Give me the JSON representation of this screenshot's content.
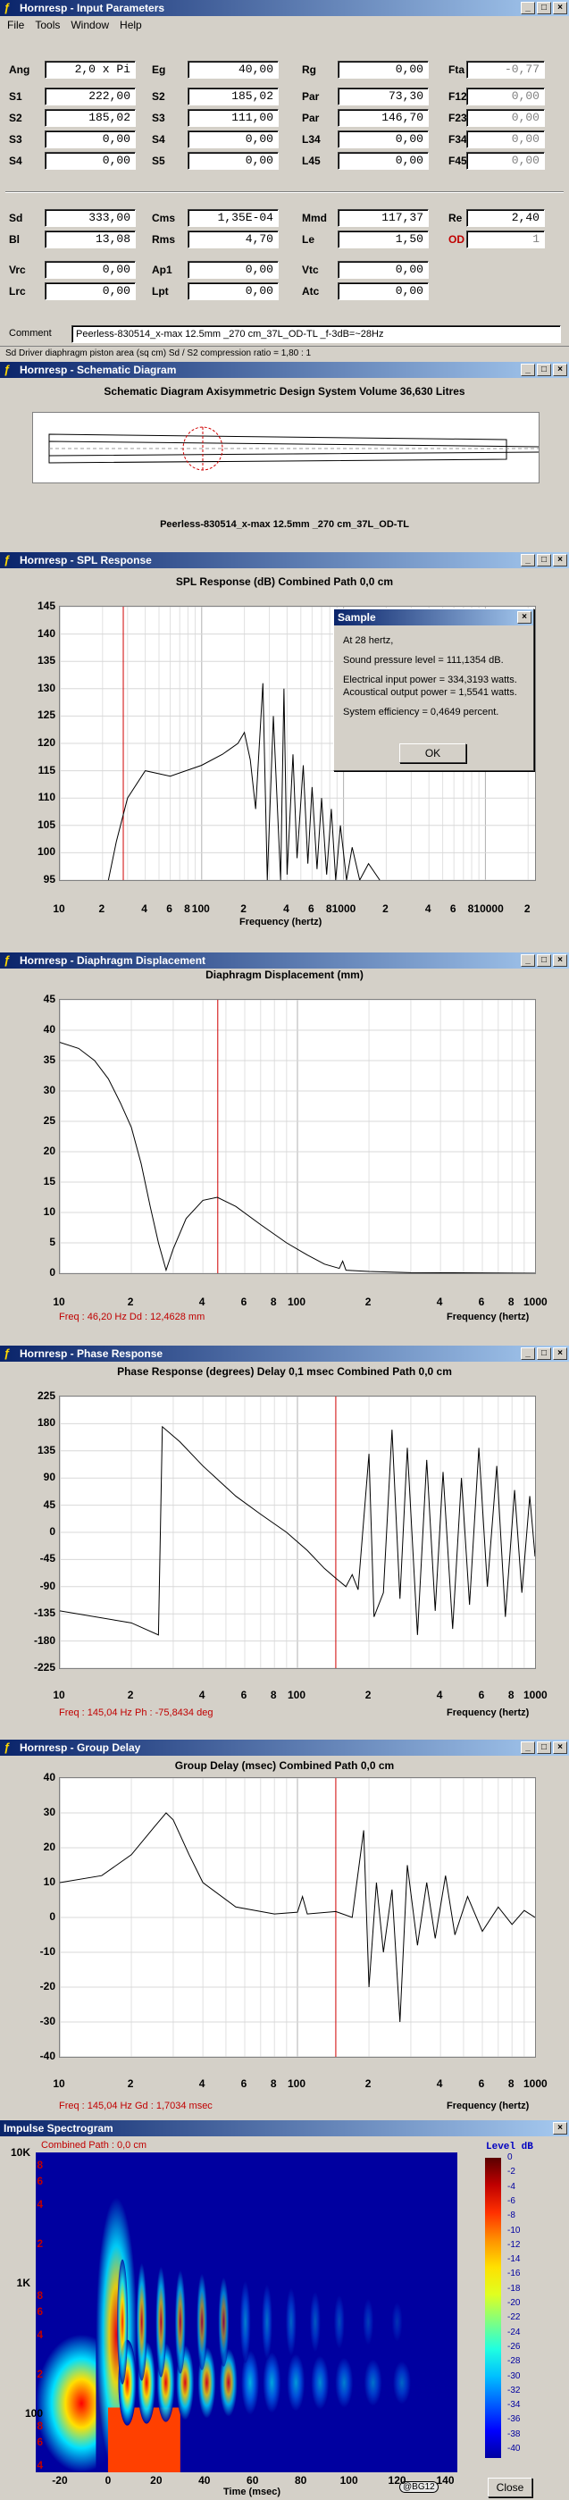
{
  "input": {
    "title": "Hornresp - Input Parameters",
    "menu": [
      "File",
      "Tools",
      "Window",
      "Help"
    ],
    "params": [
      {
        "label": "Ang",
        "value": "2,0 x Pi",
        "gray": false
      },
      {
        "label": "Eg",
        "value": "40,00",
        "gray": false
      },
      {
        "label": "Rg",
        "value": "0,00",
        "gray": false
      },
      {
        "label": "Fta",
        "value": "-0,77",
        "gray": true
      },
      {
        "label": "S1",
        "value": "222,00",
        "gray": false
      },
      {
        "label": "S2",
        "value": "185,02",
        "gray": false
      },
      {
        "label": "Par",
        "value": "73,30",
        "gray": false
      },
      {
        "label": "F12",
        "value": "0,00",
        "gray": true
      },
      {
        "label": "S2",
        "value": "185,02",
        "gray": false
      },
      {
        "label": "S3",
        "value": "111,00",
        "gray": false
      },
      {
        "label": "Par",
        "value": "146,70",
        "gray": false
      },
      {
        "label": "F23",
        "value": "0,00",
        "gray": true
      },
      {
        "label": "S3",
        "value": "0,00",
        "gray": false
      },
      {
        "label": "S4",
        "value": "0,00",
        "gray": false
      },
      {
        "label": "L34",
        "value": "0,00",
        "gray": false
      },
      {
        "label": "F34",
        "value": "0,00",
        "gray": true
      },
      {
        "label": "S4",
        "value": "0,00",
        "gray": false
      },
      {
        "label": "S5",
        "value": "0,00",
        "gray": false
      },
      {
        "label": "L45",
        "value": "0,00",
        "gray": false
      },
      {
        "label": "F45",
        "value": "0,00",
        "gray": true
      },
      {
        "label": "Sd",
        "value": "333,00",
        "gray": false
      },
      {
        "label": "Cms",
        "value": "1,35E-04",
        "gray": false
      },
      {
        "label": "Mmd",
        "value": "117,37",
        "gray": false
      },
      {
        "label": "Re",
        "value": "2,40",
        "gray": false
      },
      {
        "label": "Bl",
        "value": "13,08",
        "gray": false
      },
      {
        "label": "Rms",
        "value": "4,70",
        "gray": false
      },
      {
        "label": "Le",
        "value": "1,50",
        "gray": false
      },
      {
        "label": "OD",
        "value": "1",
        "gray": true
      },
      {
        "label": "Vrc",
        "value": "0,00",
        "gray": false
      },
      {
        "label": "Ap1",
        "value": "0,00",
        "gray": false
      },
      {
        "label": "Vtc",
        "value": "0,00",
        "gray": false
      },
      {
        "label": "Lrc",
        "value": "0,00",
        "gray": false
      },
      {
        "label": "Lpt",
        "value": "0,00",
        "gray": false
      },
      {
        "label": "Atc",
        "value": "0,00",
        "gray": false
      }
    ],
    "comment_label": "Comment",
    "comment": "Peerless-830514_x-max 12.5mm _270 cm_37L_OD-TL _f-3dB=~28Hz",
    "status": "Sd   Driver diaphragm piston area  (sq cm)    Sd / S2 compression ratio = 1,80 : 1"
  },
  "schematic": {
    "title": "Hornresp - Schematic Diagram",
    "heading": "Schematic Diagram   Axisymmetric Design   System Volume 36,630 Litres",
    "caption": "Peerless-830514_x-max 12.5mm _270 cm_37L_OD-TL"
  },
  "spl": {
    "window_title": "Hornresp - SPL Response",
    "heading": "SPL Response (dB)   Combined   Path 0,0 cm",
    "y_ticks": [
      "145",
      "140",
      "135",
      "130",
      "125",
      "120",
      "115",
      "110",
      "105",
      "100",
      "95"
    ],
    "x_ticks": [
      "10",
      "2",
      "4",
      "6",
      "8",
      "100",
      "2",
      "4",
      "6",
      "8",
      "1000",
      "2",
      "4",
      "6",
      "8",
      "10000",
      "2"
    ],
    "xlabel": "Frequency (hertz)",
    "dialog": {
      "title": "Sample",
      "lines": [
        "At 28 hertz,",
        "Sound pressure level = 111,1354 dB.",
        "Electrical input power = 334,3193 watts.",
        "Acoustical output power = 1,5541 watts.",
        "System efficiency = 0,4649 percent."
      ],
      "ok": "OK"
    }
  },
  "disp": {
    "window_title": "Hornresp - Diaphragm Displacement",
    "heading": "Diaphragm Displacement (mm)",
    "y_ticks": [
      "45",
      "40",
      "35",
      "30",
      "25",
      "20",
      "15",
      "10",
      "5",
      "0"
    ],
    "x_ticks": [
      "10",
      "2",
      "4",
      "6",
      "8",
      "100",
      "2",
      "4",
      "6",
      "8",
      "1000"
    ],
    "xlabel": "Frequency (hertz)",
    "readout": "Freq : 46,20 Hz     Dd : 12,4628 mm"
  },
  "phase": {
    "window_title": "Hornresp - Phase Response",
    "heading": "Phase Response (degrees)   Delay 0,1 msec   Combined   Path 0,0 cm",
    "y_ticks": [
      "225",
      "180",
      "135",
      "90",
      "45",
      "0",
      "-45",
      "-90",
      "-135",
      "-180",
      "-225"
    ],
    "x_ticks": [
      "10",
      "2",
      "4",
      "6",
      "8",
      "100",
      "2",
      "4",
      "6",
      "8",
      "1000"
    ],
    "xlabel": "Frequency (hertz)",
    "readout": "Freq : 145,04 Hz     Ph : -75,8434 deg"
  },
  "gd": {
    "window_title": "Hornresp - Group Delay",
    "heading": "Group Delay (msec)   Combined   Path 0,0 cm",
    "y_ticks": [
      "40",
      "30",
      "20",
      "10",
      "0",
      "-10",
      "-20",
      "-30",
      "-40"
    ],
    "x_ticks": [
      "10",
      "2",
      "4",
      "6",
      "8",
      "100",
      "2",
      "4",
      "6",
      "8",
      "1000"
    ],
    "xlabel": "Frequency (hertz)",
    "readout": "Freq : 145,04 Hz     Gd : 1,7034 msec"
  },
  "spectro": {
    "window_title": "Impulse Spectrogram",
    "subtitle": "Combined    Path : 0,0 cm",
    "y_ticks": [
      "10K",
      "8",
      "6",
      "4",
      "2",
      "1K",
      "8",
      "6",
      "4",
      "2",
      "100",
      "8",
      "6",
      "4"
    ],
    "x_ticks": [
      "-20",
      "0",
      "20",
      "40",
      "60",
      "80",
      "100",
      "120",
      "140"
    ],
    "xlabel": "Time (msec)",
    "level_label": "Level  dB",
    "scale": [
      "0",
      "-2",
      "-4",
      "-6",
      "-8",
      "-10",
      "-12",
      "-14",
      "-16",
      "-18",
      "-20",
      "-22",
      "-24",
      "-26",
      "-28",
      "-30",
      "-32",
      "-34",
      "-36",
      "-38",
      "-40"
    ],
    "badge": "@BG12",
    "close": "Close"
  }
}
